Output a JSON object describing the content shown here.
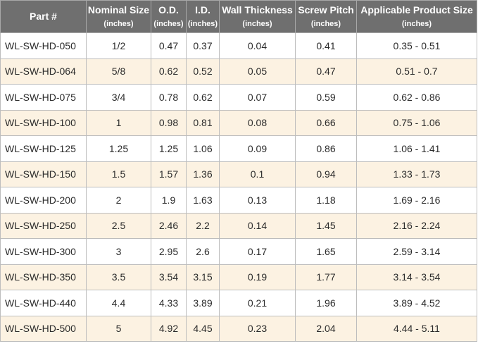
{
  "table": {
    "headers": [
      {
        "name": "Part #",
        "unit": ""
      },
      {
        "name": "Nominal Size",
        "unit": "(inches)"
      },
      {
        "name": "O.D.",
        "unit": "(inches)"
      },
      {
        "name": "I.D.",
        "unit": "(inches)"
      },
      {
        "name": "Wall Thickness",
        "unit": "(inches)"
      },
      {
        "name": "Screw Pitch",
        "unit": "(inches)"
      },
      {
        "name": "Applicable Product Size",
        "unit": "(inches)"
      }
    ],
    "rows": [
      [
        "WL-SW-HD-050",
        "1/2",
        "0.47",
        "0.37",
        "0.04",
        "0.41",
        "0.35 - 0.51"
      ],
      [
        "WL-SW-HD-064",
        "5/8",
        "0.62",
        "0.52",
        "0.05",
        "0.47",
        "0.51 - 0.7"
      ],
      [
        "WL-SW-HD-075",
        "3/4",
        "0.78",
        "0.62",
        "0.07",
        "0.59",
        "0.62 - 0.86"
      ],
      [
        "WL-SW-HD-100",
        "1",
        "0.98",
        "0.81",
        "0.08",
        "0.66",
        "0.75 - 1.06"
      ],
      [
        "WL-SW-HD-125",
        "1.25",
        "1.25",
        "1.06",
        "0.09",
        "0.86",
        "1.06 - 1.41"
      ],
      [
        "WL-SW-HD-150",
        "1.5",
        "1.57",
        "1.36",
        "0.1",
        "0.94",
        "1.33 - 1.73"
      ],
      [
        "WL-SW-HD-200",
        "2",
        "1.9",
        "1.63",
        "0.13",
        "1.18",
        "1.69 - 2.16"
      ],
      [
        "WL-SW-HD-250",
        "2.5",
        "2.46",
        "2.2",
        "0.14",
        "1.45",
        "2.16 - 2.24"
      ],
      [
        "WL-SW-HD-300",
        "3",
        "2.95",
        "2.6",
        "0.17",
        "1.65",
        "2.59 - 3.14"
      ],
      [
        "WL-SW-HD-350",
        "3.5",
        "3.54",
        "3.15",
        "0.19",
        "1.77",
        "3.14 - 3.54"
      ],
      [
        "WL-SW-HD-440",
        "4.4",
        "4.33",
        "3.89",
        "0.21",
        "1.96",
        "3.89 - 4.52"
      ],
      [
        "WL-SW-HD-500",
        "5",
        "4.92",
        "4.45",
        "0.23",
        "2.04",
        "4.44 - 5.11"
      ]
    ]
  },
  "colors": {
    "header_bg": "#6f6f6f",
    "header_text": "#ffffff",
    "row_alt_bg": "#fcf2e2",
    "row_plain_bg": "#ffffff",
    "border": "#bdbdbd"
  }
}
